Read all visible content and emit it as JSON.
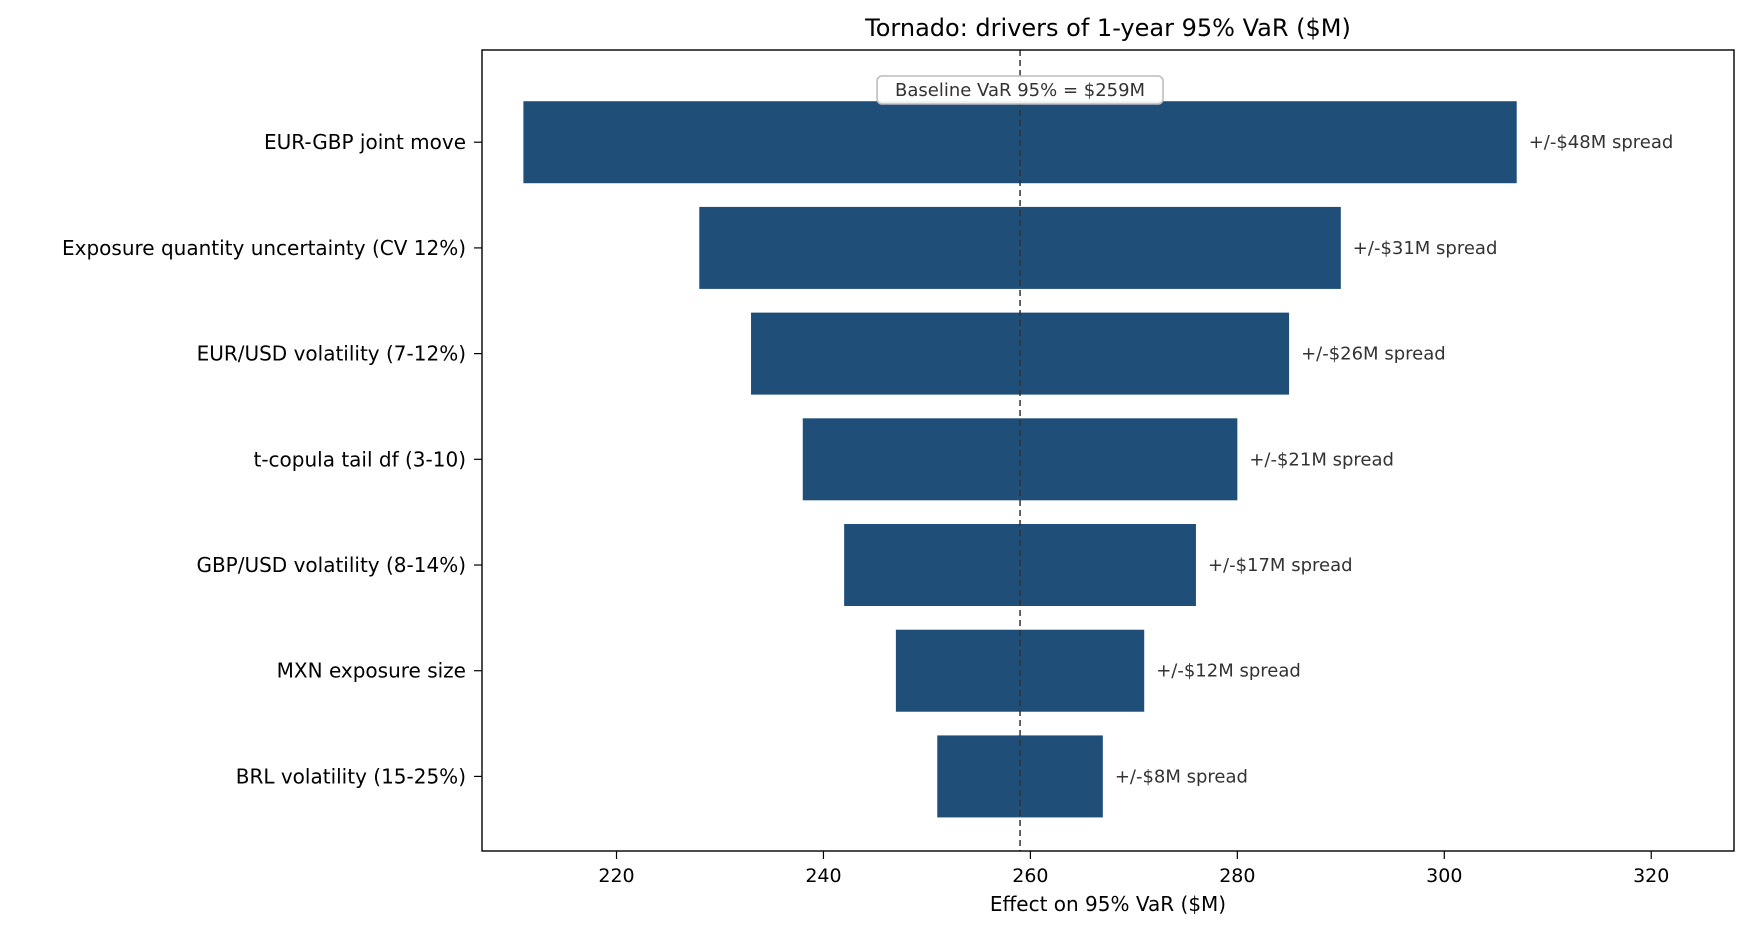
{
  "chart_data": {
    "type": "bar",
    "orientation": "horizontal",
    "title": "Tornado: drivers of 1-year 95% VaR  ($M)",
    "xlabel": "Effect on 95% VaR  ($M)",
    "ylabel": "",
    "xlim": [
      207,
      328
    ],
    "xticks": [
      220,
      240,
      260,
      280,
      300,
      320
    ],
    "baseline": 259,
    "baseline_label": "Baseline VaR 95% = $259M",
    "bar_color": "#1f4e79",
    "grid": false,
    "categories": [
      "EUR-GBP joint move",
      "Exposure quantity uncertainty (CV 12%)",
      "EUR/USD volatility (7-12%)",
      "t-copula tail df (3-10)",
      "GBP/USD volatility (8-14%)",
      "MXN exposure size",
      "BRL volatility (15-25%)"
    ],
    "low": [
      211,
      228,
      233,
      238,
      242,
      247,
      251
    ],
    "high": [
      307,
      290,
      285,
      280,
      276,
      271,
      267
    ],
    "spread_labels": [
      "+/-$48M spread",
      "+/-$31M spread",
      "+/-$26M spread",
      "+/-$21M spread",
      "+/-$17M spread",
      "+/-$12M spread",
      "+/-$8M spread"
    ]
  }
}
